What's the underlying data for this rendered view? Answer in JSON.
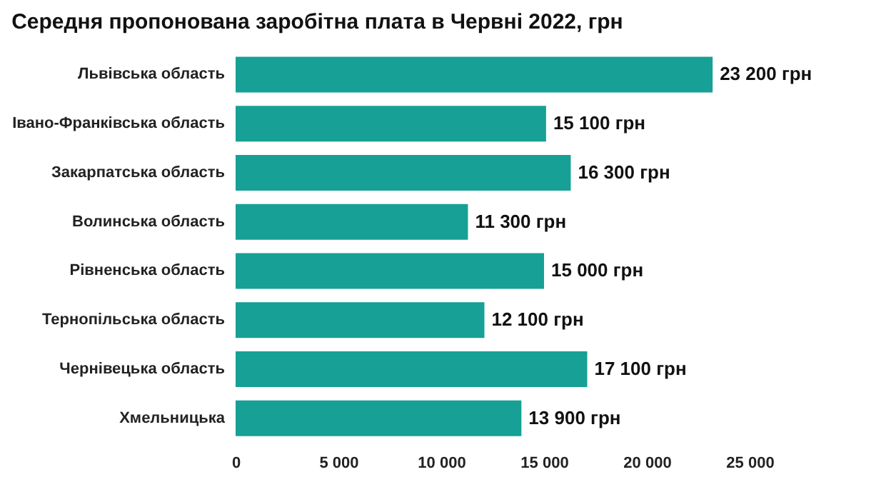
{
  "chart_data": {
    "type": "bar",
    "orientation": "horizontal",
    "title": "Середня пропонована заробітна плата в Червні 2022, грн",
    "categories": [
      "Львівська область",
      "Івано-Франківська область",
      "Закарпатська область",
      "Волинська область",
      "Рівненська область",
      "Тернопільська область",
      "Чернівецька область",
      "Хмельницька"
    ],
    "values": [
      23200,
      15100,
      16300,
      11300,
      15000,
      12100,
      17100,
      13900
    ],
    "value_labels": [
      "23 200 грн",
      "15 100 грн",
      "16 300 грн",
      "11 300 грн",
      "15 000 грн",
      "12 100 грн",
      "17 100 грн",
      "13 900 грн"
    ],
    "color": "#16a096",
    "xlim": [
      0,
      25000
    ],
    "xticks": [
      0,
      {
        "value": 5000,
        "label": "5 000"
      },
      {
        "value": 10000,
        "label": "10 000"
      },
      {
        "value": 15000,
        "label": "15 000"
      },
      {
        "value": 20000,
        "label": "20 000"
      },
      {
        "value": 25000,
        "label": "25 000"
      }
    ],
    "grid": false
  }
}
